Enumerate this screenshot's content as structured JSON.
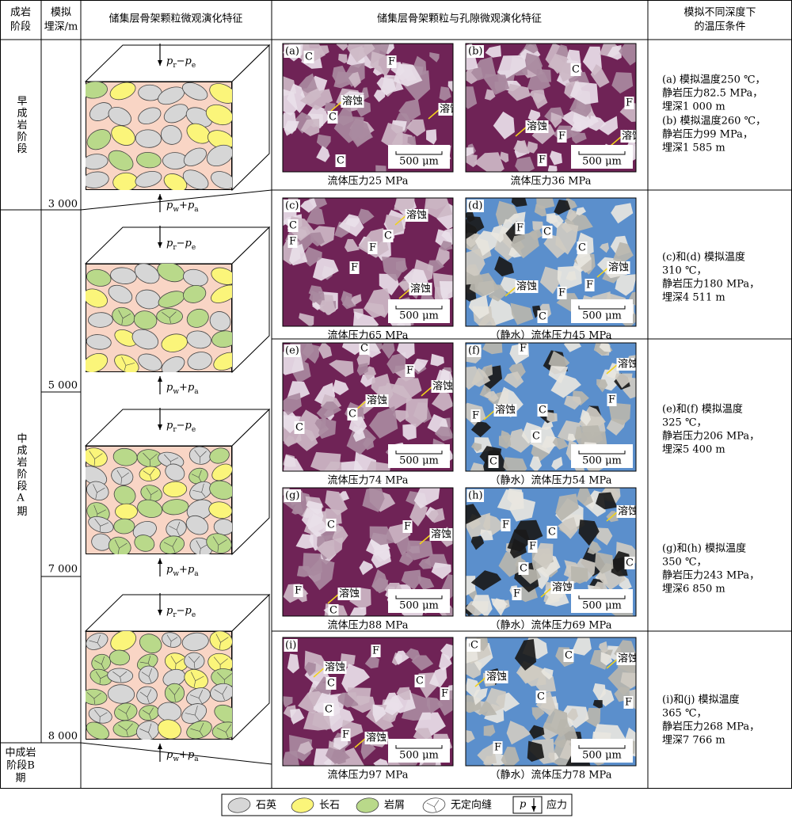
{
  "header": {
    "stage": [
      "成岩",
      "阶段"
    ],
    "depth": [
      "模拟",
      "埋深/m"
    ],
    "grain": "储集层骨架颗粒微观演化特征",
    "pore": "储集层骨架颗粒与孔隙微观演化特征",
    "conditions": [
      "模拟不同深度下",
      "的温压条件"
    ]
  },
  "stages": [
    {
      "label": "早成岩阶段"
    },
    {
      "label": "中成岩阶段A期"
    },
    {
      "lines": [
        "中成岩",
        "阶段B",
        "期"
      ]
    }
  ],
  "depths": [
    "3 000",
    "5 000",
    "7 000",
    "8 000"
  ],
  "stress": {
    "top": [
      "p",
      "r",
      "−",
      "p",
      "e"
    ],
    "bottom": [
      "p",
      "w",
      "+",
      "p",
      "a"
    ]
  },
  "panels": [
    {
      "id": "(a)",
      "labels": [
        "C",
        "F",
        "溶蚀",
        "C",
        "溶蚀",
        "C",
        "F"
      ],
      "scale": "500 μm",
      "caption": "流体压力25 MPa"
    },
    {
      "id": "(b)",
      "labels": [
        "C",
        "F",
        "溶蚀",
        "溶蚀",
        "F",
        "F"
      ],
      "scale": "500 μm",
      "caption": "流体压力36 MPa"
    },
    {
      "id": "(c)",
      "labels": [
        "C",
        "F",
        "溶蚀",
        "C",
        "F",
        "F",
        "溶蚀"
      ],
      "scale": "500 μm",
      "caption": "流体压力65 MPa"
    },
    {
      "id": "(d)",
      "labels": [
        "F",
        "C",
        "C",
        "溶蚀",
        "溶蚀",
        "F",
        "F",
        "C"
      ],
      "scale": "500 μm",
      "caption": "（静水）流体压力45 MPa"
    },
    {
      "id": "(e)",
      "labels": [
        "C",
        "F",
        "溶蚀",
        "溶蚀",
        "C",
        "C"
      ],
      "scale": "500 μm",
      "caption": "流体压力74 MPa"
    },
    {
      "id": "(f)",
      "labels": [
        "F",
        "溶蚀",
        "F",
        "溶蚀",
        "F",
        "C",
        "C",
        "C"
      ],
      "scale": "500 μm",
      "caption": "（静水）流体压力54 MPa"
    },
    {
      "id": "(g)",
      "labels": [
        "C",
        "F",
        "溶蚀",
        "F",
        "溶蚀",
        "C"
      ],
      "scale": "500 μm",
      "caption": "流体压力88 MPa"
    },
    {
      "id": "(h)",
      "labels": [
        "溶蚀",
        "F",
        "C",
        "F",
        "C",
        "C",
        "溶蚀",
        "F"
      ],
      "scale": "500 μm",
      "caption": "（静水）流体压力69 MPa"
    },
    {
      "id": "(i)",
      "labels": [
        "F",
        "溶蚀",
        "C",
        "C",
        "C",
        "F",
        "F",
        "溶蚀"
      ],
      "scale": "500 μm",
      "caption": "流体压力97 MPa"
    },
    {
      "id": "(j)",
      "labels": [
        "C",
        "C",
        "溶蚀",
        "溶蚀",
        "C",
        "F",
        "F"
      ],
      "scale": "500 μm",
      "caption": "（静水）流体压力78 MPa"
    }
  ],
  "conditions": [
    [
      "(a) 模拟温度250 ℃，",
      "静岩压力82.5 MPa，",
      "埋深1 000 m"
    ],
    [
      "(b) 模拟温度260 ℃，",
      "静岩压力99 MPa，",
      "埋深1 585 m"
    ],
    [
      "(c)和(d) 模拟温度",
      "310 ℃，",
      "静岩压力180 MPa，",
      "埋深4 511 m"
    ],
    [
      "(e)和(f) 模拟温度",
      "325 ℃，",
      "静岩压力206 MPa，",
      "埋深5 400 m"
    ],
    [
      "(g)和(h) 模拟温度",
      "350 ℃，",
      "静岩压力243 MPa，",
      "埋深6 850 m"
    ],
    [
      "(i)和(j) 模拟温度",
      "365 ℃，",
      "静岩压力268 MPa，",
      "埋深7 766 m"
    ]
  ],
  "legend": {
    "items": [
      "石英",
      "长石",
      "岩屑",
      "无定向缝"
    ],
    "stress_symbol": "p",
    "stress": "应力"
  }
}
